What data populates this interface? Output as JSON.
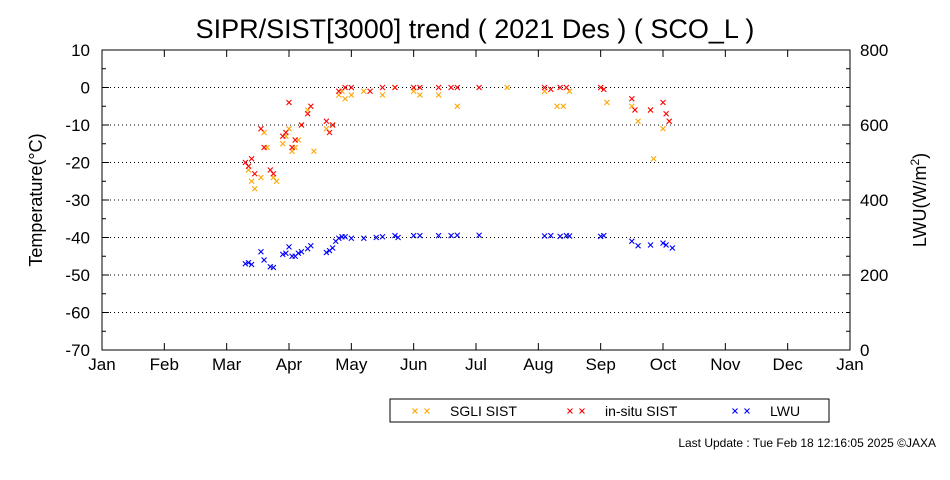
{
  "chart_data": {
    "type": "scatter",
    "title": "SIPR/SIST[3000] trend ( 2021 Des ) ( SCO_L )",
    "ylabel": "Temperature(°C)",
    "y2label_main": "LWU(W/m",
    "y2label_sup": "2",
    "y2label_end": ")",
    "ylim": [
      -70,
      10
    ],
    "y2lim": [
      0,
      800
    ],
    "yticks": [
      "10",
      "0",
      "-10",
      "-20",
      "-30",
      "-40",
      "-50",
      "-60",
      "-70"
    ],
    "y2ticks": [
      "800",
      "600",
      "400",
      "200",
      "0"
    ],
    "months": [
      "Jan",
      "Feb",
      "Mar",
      "Apr",
      "May",
      "Jun",
      "Jul",
      "Aug",
      "Sep",
      "Oct",
      "Nov",
      "Dec",
      "Jan"
    ],
    "grid": true,
    "legend_position": "bottom",
    "series": [
      {
        "name": "SGLI SIST",
        "color": "#ffa500",
        "axis": "left",
        "points": [
          [
            2.35,
            -22
          ],
          [
            2.4,
            -25
          ],
          [
            2.45,
            -27
          ],
          [
            2.55,
            -24
          ],
          [
            2.6,
            -12
          ],
          [
            2.65,
            -16
          ],
          [
            2.75,
            -24
          ],
          [
            2.8,
            -25
          ],
          [
            2.9,
            -15
          ],
          [
            2.95,
            -13
          ],
          [
            3.0,
            -11
          ],
          [
            3.05,
            -17
          ],
          [
            3.1,
            -16
          ],
          [
            3.15,
            -14
          ],
          [
            3.2,
            -10
          ],
          [
            3.3,
            -6
          ],
          [
            3.4,
            -17
          ],
          [
            3.6,
            -11
          ],
          [
            3.7,
            -10
          ],
          [
            3.8,
            -2
          ],
          [
            3.85,
            -1
          ],
          [
            3.9,
            -3
          ],
          [
            4.0,
            -2
          ],
          [
            4.2,
            -1
          ],
          [
            4.5,
            -2
          ],
          [
            4.7,
            0
          ],
          [
            5.0,
            -1
          ],
          [
            5.1,
            -2
          ],
          [
            5.4,
            -2
          ],
          [
            5.7,
            -5
          ],
          [
            6.5,
            0
          ],
          [
            7.1,
            -1
          ],
          [
            7.3,
            -5
          ],
          [
            7.4,
            -5
          ],
          [
            7.5,
            -1
          ],
          [
            8.1,
            -4
          ],
          [
            8.5,
            -5
          ],
          [
            8.6,
            -9
          ],
          [
            8.8,
            -6
          ],
          [
            8.85,
            -19
          ],
          [
            9.0,
            -11
          ],
          [
            9.1,
            -9
          ]
        ]
      },
      {
        "name": "in-situ SIST",
        "color": "#ff0000",
        "axis": "left",
        "points": [
          [
            2.3,
            -20
          ],
          [
            2.35,
            -21
          ],
          [
            2.4,
            -19
          ],
          [
            2.45,
            -23
          ],
          [
            2.55,
            -11
          ],
          [
            2.6,
            -16
          ],
          [
            2.7,
            -22
          ],
          [
            2.75,
            -23
          ],
          [
            2.9,
            -13
          ],
          [
            2.95,
            -12
          ],
          [
            3.0,
            -4
          ],
          [
            3.05,
            -16
          ],
          [
            3.1,
            -14
          ],
          [
            3.2,
            -10
          ],
          [
            3.3,
            -7
          ],
          [
            3.35,
            -5
          ],
          [
            3.6,
            -9
          ],
          [
            3.65,
            -12
          ],
          [
            3.7,
            -10
          ],
          [
            3.8,
            -1
          ],
          [
            3.9,
            0
          ],
          [
            4.0,
            0
          ],
          [
            4.3,
            -1
          ],
          [
            4.5,
            0
          ],
          [
            4.7,
            0
          ],
          [
            5.0,
            0
          ],
          [
            5.1,
            0
          ],
          [
            5.4,
            0
          ],
          [
            5.6,
            0
          ],
          [
            5.7,
            0
          ],
          [
            6.05,
            0
          ],
          [
            7.1,
            0
          ],
          [
            7.2,
            -0.5
          ],
          [
            7.35,
            0
          ],
          [
            7.45,
            0
          ],
          [
            8.0,
            0
          ],
          [
            8.05,
            -0.5
          ],
          [
            8.5,
            -3
          ],
          [
            8.55,
            -6
          ],
          [
            8.8,
            -6
          ],
          [
            9.0,
            -4
          ],
          [
            9.05,
            -7
          ],
          [
            9.1,
            -9
          ]
        ]
      },
      {
        "name": "LWU",
        "color": "#0000ff",
        "axis": "right",
        "points": [
          [
            2.3,
            230
          ],
          [
            2.35,
            233
          ],
          [
            2.4,
            228
          ],
          [
            2.55,
            262
          ],
          [
            2.6,
            240
          ],
          [
            2.7,
            222
          ],
          [
            2.75,
            220
          ],
          [
            2.9,
            255
          ],
          [
            2.95,
            258
          ],
          [
            3.0,
            275
          ],
          [
            3.05,
            250
          ],
          [
            3.1,
            250
          ],
          [
            3.15,
            258
          ],
          [
            3.2,
            262
          ],
          [
            3.3,
            270
          ],
          [
            3.35,
            278
          ],
          [
            3.6,
            260
          ],
          [
            3.65,
            265
          ],
          [
            3.7,
            272
          ],
          [
            3.75,
            290
          ],
          [
            3.8,
            298
          ],
          [
            3.85,
            302
          ],
          [
            3.9,
            302
          ],
          [
            4.0,
            298
          ],
          [
            4.2,
            298
          ],
          [
            4.4,
            300
          ],
          [
            4.5,
            302
          ],
          [
            4.7,
            305
          ],
          [
            4.75,
            300
          ],
          [
            5.0,
            305
          ],
          [
            5.1,
            305
          ],
          [
            5.4,
            305
          ],
          [
            5.6,
            305
          ],
          [
            5.7,
            306
          ],
          [
            6.05,
            306
          ],
          [
            7.1,
            304
          ],
          [
            7.2,
            305
          ],
          [
            7.35,
            303
          ],
          [
            7.45,
            305
          ],
          [
            7.5,
            304
          ],
          [
            8.0,
            303
          ],
          [
            8.05,
            305
          ],
          [
            8.5,
            290
          ],
          [
            8.6,
            278
          ],
          [
            8.8,
            280
          ],
          [
            9.0,
            285
          ],
          [
            9.05,
            280
          ],
          [
            9.15,
            272
          ]
        ]
      }
    ]
  },
  "footer": {
    "last_update": "Last Update : Tue Feb 18 12:16:05 2025  ©JAXA"
  }
}
